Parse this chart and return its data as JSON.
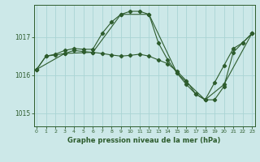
{
  "title": "Graphe pression niveau de la mer (hPa)",
  "bg_color": "#cce8e8",
  "grid_color": "#aad4d4",
  "line_color": "#2d5c2d",
  "ylim": [
    1014.65,
    1017.85
  ],
  "xlim": [
    -0.3,
    23.3
  ],
  "yticks": [
    1015,
    1016,
    1017
  ],
  "xticks": [
    0,
    1,
    2,
    3,
    4,
    5,
    6,
    7,
    8,
    9,
    10,
    11,
    12,
    13,
    14,
    15,
    16,
    17,
    18,
    19,
    20,
    21,
    22,
    23
  ],
  "series1_x": [
    0,
    1,
    2,
    3,
    4,
    5,
    6,
    7,
    8,
    9,
    10,
    11,
    12,
    13,
    14,
    15,
    16,
    17,
    18,
    19,
    20,
    21,
    22,
    23
  ],
  "series1_y": [
    1016.15,
    1016.5,
    1016.55,
    1016.65,
    1016.7,
    1016.68,
    1016.68,
    1017.1,
    1017.4,
    1017.6,
    1017.68,
    1017.68,
    1017.6,
    1016.85,
    1016.4,
    1016.05,
    1015.75,
    1015.5,
    1015.35,
    1015.35,
    1015.7,
    1016.6,
    1016.85,
    1017.1
  ],
  "series2_x": [
    0,
    1,
    2,
    3,
    4,
    5,
    6,
    7,
    8,
    9,
    10,
    11,
    12,
    13,
    14,
    15,
    16,
    17,
    18,
    19,
    20,
    21,
    22,
    23
  ],
  "series2_y": [
    1016.15,
    1016.5,
    1016.53,
    1016.57,
    1016.65,
    1016.62,
    1016.6,
    1016.57,
    1016.53,
    1016.5,
    1016.52,
    1016.55,
    1016.5,
    1016.4,
    1016.3,
    1016.1,
    1015.85,
    1015.5,
    1015.35,
    1015.8,
    1016.25,
    1016.7,
    1016.85,
    1017.1
  ],
  "series3_x": [
    0,
    3,
    6,
    9,
    12,
    15,
    18,
    20,
    23
  ],
  "series3_y": [
    1016.15,
    1016.57,
    1016.6,
    1017.6,
    1017.6,
    1016.05,
    1015.35,
    1015.75,
    1017.1
  ]
}
